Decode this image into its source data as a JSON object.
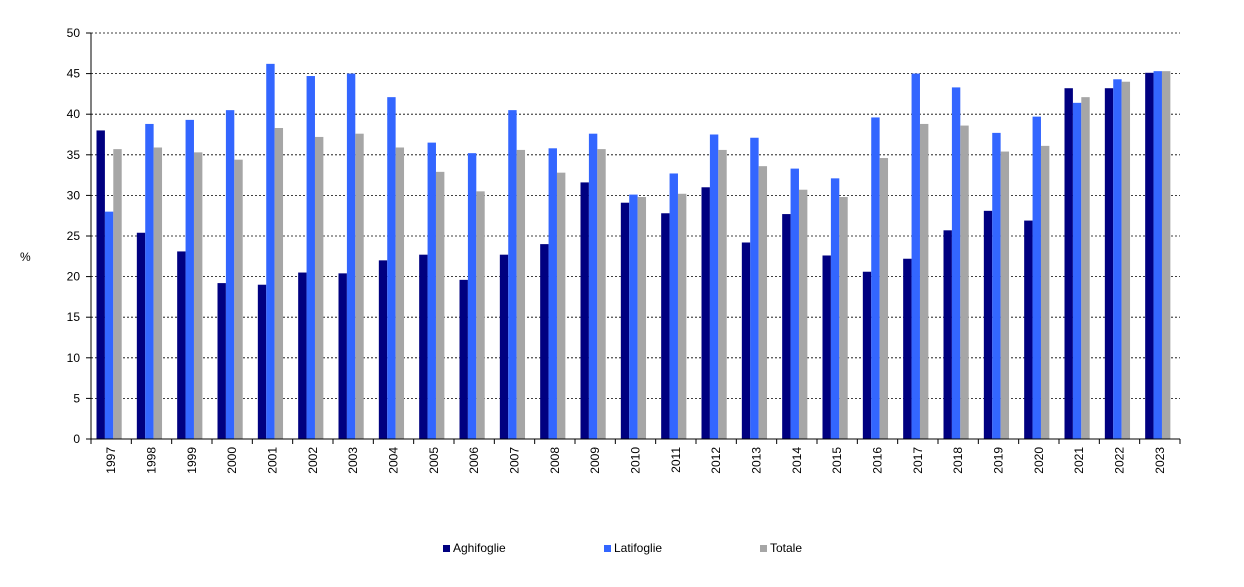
{
  "chart_data": {
    "type": "bar",
    "ylabel": "%",
    "ylim": [
      0,
      50
    ],
    "yticks": [
      0,
      5,
      10,
      15,
      20,
      25,
      30,
      35,
      40,
      45,
      50
    ],
    "grid": true,
    "legend_position": "bottom",
    "categories": [
      "1997",
      "1998",
      "1999",
      "2000",
      "2001",
      "2002",
      "2003",
      "2004",
      "2005",
      "2006",
      "2007",
      "2008",
      "2009",
      "2010",
      "2011",
      "2012",
      "2013",
      "2014",
      "2015",
      "2016",
      "2017",
      "2018",
      "2019",
      "2020",
      "2021",
      "2022",
      "2023"
    ],
    "series": [
      {
        "name": "Aghifoglie",
        "color": "#000080",
        "values": [
          38.0,
          25.4,
          23.1,
          19.2,
          19.0,
          20.5,
          20.4,
          22.0,
          22.7,
          19.6,
          22.7,
          24.0,
          31.6,
          29.1,
          27.8,
          31.0,
          24.2,
          27.7,
          22.6,
          20.6,
          22.2,
          25.7,
          28.1,
          26.9,
          43.2,
          43.2,
          45.1
        ]
      },
      {
        "name": "Latifoglie",
        "color": "#3366FF",
        "values": [
          28.0,
          38.8,
          39.3,
          40.5,
          46.2,
          44.7,
          45.0,
          42.1,
          36.5,
          35.2,
          40.5,
          35.8,
          37.6,
          30.1,
          32.7,
          37.5,
          37.1,
          33.3,
          32.1,
          39.6,
          45.0,
          43.3,
          37.7,
          39.7,
          41.4,
          44.3,
          45.3
        ]
      },
      {
        "name": "Totale",
        "color": "#A6A6A6",
        "values": [
          35.7,
          35.9,
          35.3,
          34.4,
          38.3,
          37.2,
          37.6,
          35.9,
          32.9,
          30.5,
          35.6,
          32.8,
          35.7,
          29.8,
          30.2,
          35.6,
          33.6,
          30.7,
          29.8,
          34.6,
          38.8,
          38.6,
          35.4,
          36.1,
          42.1,
          44.0,
          45.3
        ]
      }
    ]
  }
}
